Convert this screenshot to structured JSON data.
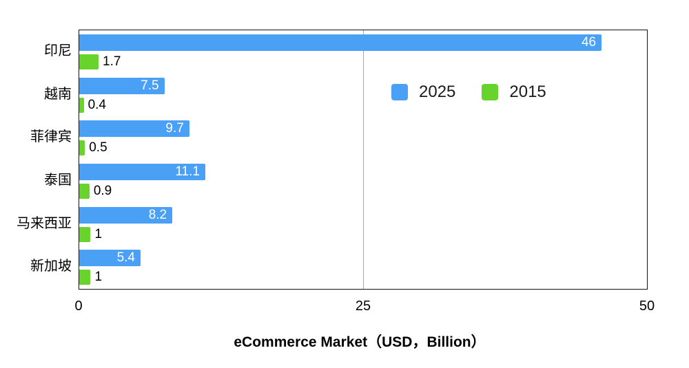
{
  "chart_data": {
    "type": "bar",
    "orientation": "horizontal",
    "title": "",
    "xlabel": "eCommerce Market（USD，Billion）",
    "ylabel": "",
    "xlim": [
      0,
      50
    ],
    "x_ticks": [
      "0",
      "25",
      "50"
    ],
    "grid": "single vertical gridline at 25",
    "legend_position": "inside-top-right",
    "categories": [
      "印尼",
      "越南",
      "菲律宾",
      "泰国",
      "马来西亚",
      "新加坡"
    ],
    "series": [
      {
        "name": "2025",
        "color": "#4aa0f5",
        "values": [
          46,
          7.5,
          9.7,
          11.1,
          8.2,
          5.4
        ],
        "labels": [
          "46",
          "7.5",
          "9.7",
          "11.1",
          "8.2",
          "5.4"
        ],
        "label_position": "inside",
        "label_color": "#ffffff"
      },
      {
        "name": "2015",
        "color": "#68d32b",
        "values": [
          1.7,
          0.4,
          0.5,
          0.9,
          1,
          1
        ],
        "labels": [
          "1.7",
          "0.4",
          "0.5",
          "0.9",
          "1",
          "1"
        ],
        "label_position": "outside",
        "label_color": "#000000"
      }
    ],
    "frame_color": "#111111",
    "gridline_color": "#a6a6a6"
  }
}
